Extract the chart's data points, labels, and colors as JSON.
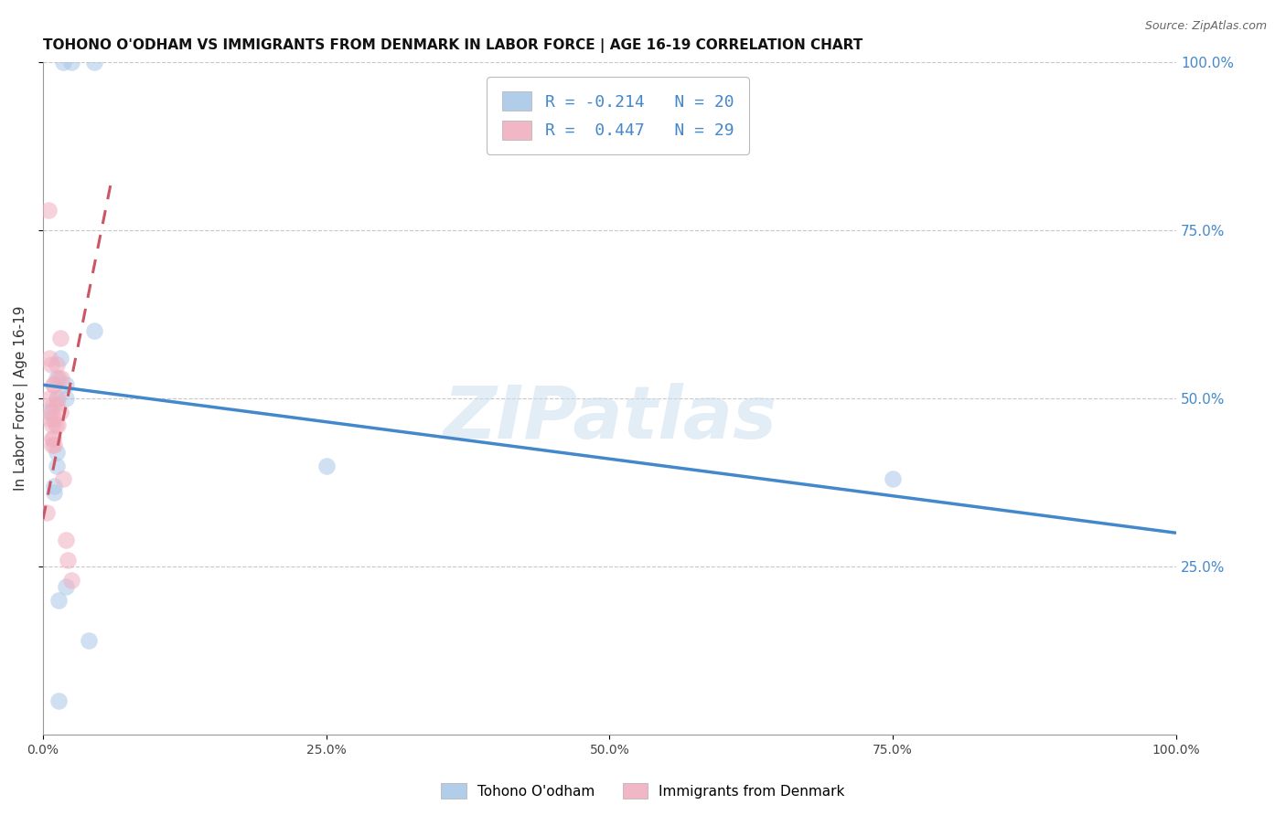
{
  "title": "TOHONO O'ODHAM VS IMMIGRANTS FROM DENMARK IN LABOR FORCE | AGE 16-19 CORRELATION CHART",
  "source": "Source: ZipAtlas.com",
  "ylabel": "In Labor Force | Age 16-19",
  "xlim": [
    0,
    1.0
  ],
  "ylim": [
    0,
    1.0
  ],
  "background_color": "#ffffff",
  "grid_color": "#c8c8c8",
  "watermark_text": "ZIPatlas",
  "blue_points_x": [
    0.018,
    0.025,
    0.045,
    0.045,
    0.02,
    0.02,
    0.015,
    0.012,
    0.012,
    0.012,
    0.012,
    0.01,
    0.01,
    0.25,
    0.02,
    0.04,
    0.75,
    0.014,
    0.014,
    0.005
  ],
  "blue_points_y": [
    1.0,
    1.0,
    1.0,
    0.6,
    0.52,
    0.5,
    0.56,
    0.53,
    0.5,
    0.42,
    0.4,
    0.37,
    0.36,
    0.4,
    0.22,
    0.14,
    0.38,
    0.2,
    0.05,
    0.48
  ],
  "pink_points_x": [
    0.003,
    0.005,
    0.006,
    0.006,
    0.006,
    0.007,
    0.007,
    0.008,
    0.008,
    0.008,
    0.009,
    0.009,
    0.009,
    0.01,
    0.01,
    0.01,
    0.011,
    0.012,
    0.012,
    0.013,
    0.013,
    0.014,
    0.015,
    0.015,
    0.016,
    0.018,
    0.02,
    0.022,
    0.025
  ],
  "pink_points_y": [
    0.33,
    0.78,
    0.56,
    0.5,
    0.47,
    0.55,
    0.48,
    0.46,
    0.44,
    0.43,
    0.52,
    0.49,
    0.44,
    0.52,
    0.47,
    0.43,
    0.46,
    0.55,
    0.49,
    0.5,
    0.46,
    0.53,
    0.59,
    0.48,
    0.53,
    0.38,
    0.29,
    0.26,
    0.23
  ],
  "blue_R": -0.214,
  "blue_N": 20,
  "pink_R": 0.447,
  "pink_N": 29,
  "blue_line_x": [
    0.0,
    1.0
  ],
  "blue_line_y": [
    0.52,
    0.3
  ],
  "pink_line_x": [
    0.0,
    0.06
  ],
  "pink_line_y": [
    0.32,
    0.82
  ],
  "blue_color": "#aac8e8",
  "pink_color": "#f0b0c0",
  "blue_line_color": "#4488cc",
  "pink_line_color": "#cc5566",
  "legend_blue_label": "Tohono O'odham",
  "legend_pink_label": "Immigrants from Denmark",
  "title_fontsize": 11,
  "axis_label_fontsize": 10,
  "tick_fontsize": 10,
  "legend_fontsize": 11
}
